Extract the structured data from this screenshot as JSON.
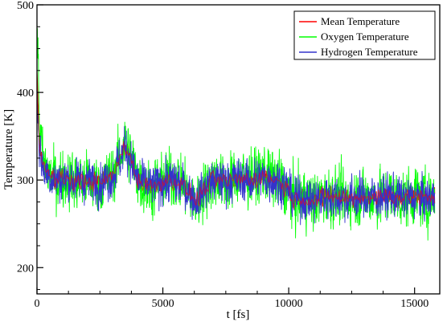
{
  "chart_data": {
    "type": "line",
    "title": "",
    "xlabel": "t [fs]",
    "ylabel": "Temperature [K]",
    "xlim": [
      0,
      16000
    ],
    "ylim": [
      170,
      500
    ],
    "x_ticks": [
      0,
      5000,
      10000,
      15000
    ],
    "x_tick_labels": [
      "0",
      "5000",
      "10000",
      "15000"
    ],
    "y_ticks": [
      200,
      300,
      400,
      500
    ],
    "y_tick_labels": [
      "200",
      "300",
      "400",
      "500"
    ],
    "grid": false,
    "legend_position": "top-right",
    "series": [
      {
        "name": "Mean Temperature",
        "color": "#ff0000",
        "x": [
          0,
          100,
          250,
          500,
          800,
          1200,
          1600,
          2000,
          2500,
          3000,
          3300,
          3500,
          3700,
          4000,
          4500,
          5000,
          5500,
          6000,
          6300,
          6700,
          7000,
          7500,
          8000,
          8500,
          9000,
          9500,
          9900,
          10200,
          10600,
          11000,
          11500,
          12000,
          12500,
          13000,
          13500,
          14000,
          14500,
          15000,
          15500,
          15800
        ],
        "values": [
          420,
          340,
          315,
          305,
          300,
          302,
          298,
          300,
          296,
          305,
          325,
          340,
          325,
          300,
          292,
          298,
          300,
          288,
          275,
          292,
          300,
          298,
          302,
          300,
          305,
          300,
          292,
          278,
          280,
          276,
          282,
          280,
          279,
          281,
          280,
          283,
          279,
          281,
          278,
          282
        ]
      },
      {
        "name": "Oxygen Temperature",
        "color": "#00ff00",
        "x": [
          0,
          100,
          250,
          500,
          800,
          1200,
          1600,
          2000,
          2500,
          3000,
          3300,
          3500,
          3700,
          4000,
          4500,
          5000,
          5500,
          6000,
          6300,
          6700,
          7000,
          7500,
          8000,
          8500,
          9000,
          9500,
          9900,
          10200,
          10600,
          11000,
          11500,
          12000,
          12500,
          13000,
          13500,
          14000,
          14500,
          15000,
          15500,
          15800
        ],
        "values": [
          490,
          360,
          320,
          305,
          300,
          303,
          296,
          301,
          295,
          306,
          326,
          345,
          328,
          302,
          290,
          299,
          305,
          286,
          272,
          294,
          302,
          297,
          305,
          301,
          308,
          301,
          290,
          276,
          282,
          274,
          284,
          279,
          280,
          282,
          279,
          285,
          278,
          283,
          276,
          284
        ],
        "amplitude": 52
      },
      {
        "name": "Hydrogen Temperature",
        "color": "#3333cc",
        "x": [
          0,
          100,
          250,
          500,
          800,
          1200,
          1600,
          2000,
          2500,
          3000,
          3300,
          3500,
          3700,
          4000,
          4500,
          5000,
          5500,
          6000,
          6300,
          6700,
          7000,
          7500,
          8000,
          8500,
          9000,
          9500,
          9900,
          10200,
          10600,
          11000,
          11500,
          12000,
          12500,
          13000,
          13500,
          14000,
          14500,
          15000,
          15500,
          15800
        ],
        "values": [
          400,
          335,
          313,
          305,
          300,
          301,
          299,
          300,
          297,
          304,
          324,
          338,
          324,
          299,
          293,
          297,
          298,
          289,
          277,
          291,
          299,
          299,
          301,
          299,
          303,
          300,
          293,
          279,
          279,
          277,
          281,
          280,
          279,
          280,
          281,
          282,
          280,
          280,
          279,
          281
        ],
        "amplitude": 38
      }
    ]
  }
}
